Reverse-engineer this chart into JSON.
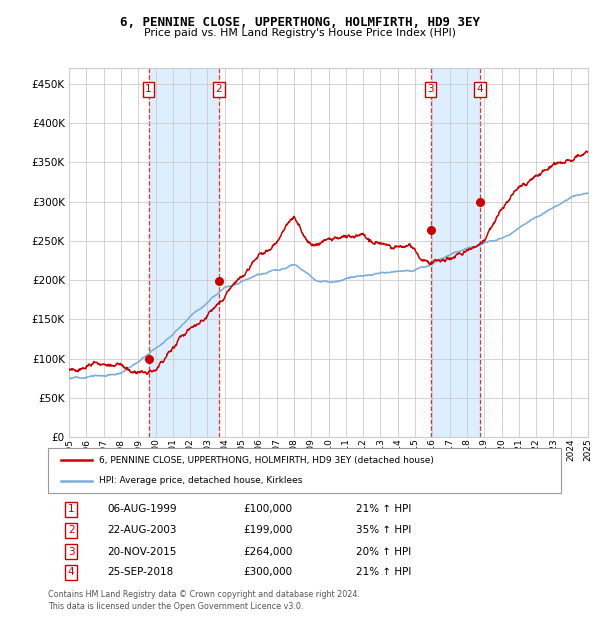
{
  "title": "6, PENNINE CLOSE, UPPERTHONG, HOLMFIRTH, HD9 3EY",
  "subtitle": "Price paid vs. HM Land Registry's House Price Index (HPI)",
  "footer": "Contains HM Land Registry data © Crown copyright and database right 2024.\nThis data is licensed under the Open Government Licence v3.0.",
  "legend_line1": "6, PENNINE CLOSE, UPPERTHONG, HOLMFIRTH, HD9 3EY (detached house)",
  "legend_line2": "HPI: Average price, detached house, Kirklees",
  "transactions": [
    {
      "num": 1,
      "date": "06-AUG-1999",
      "price": 100000,
      "hpi_pct": "21% ↑ HPI",
      "year": 1999.6
    },
    {
      "num": 2,
      "date": "22-AUG-2003",
      "price": 199000,
      "hpi_pct": "35% ↑ HPI",
      "year": 2003.65
    },
    {
      "num": 3,
      "date": "20-NOV-2015",
      "price": 264000,
      "hpi_pct": "20% ↑ HPI",
      "year": 2015.9
    },
    {
      "num": 4,
      "date": "25-SEP-2018",
      "price": 300000,
      "hpi_pct": "21% ↑ HPI",
      "year": 2018.75
    }
  ],
  "sale_color": "#cc0000",
  "hpi_color": "#7aaddb",
  "highlight_color": "#ddeeff",
  "dashed_color": "#ee3333",
  "marker_color": "#cc0000",
  "ylim": [
    0,
    470000
  ],
  "yticks": [
    0,
    50000,
    100000,
    150000,
    200000,
    250000,
    300000,
    350000,
    400000,
    450000
  ],
  "grid_color": "#cccccc",
  "start_year": 1995,
  "end_year": 2025
}
